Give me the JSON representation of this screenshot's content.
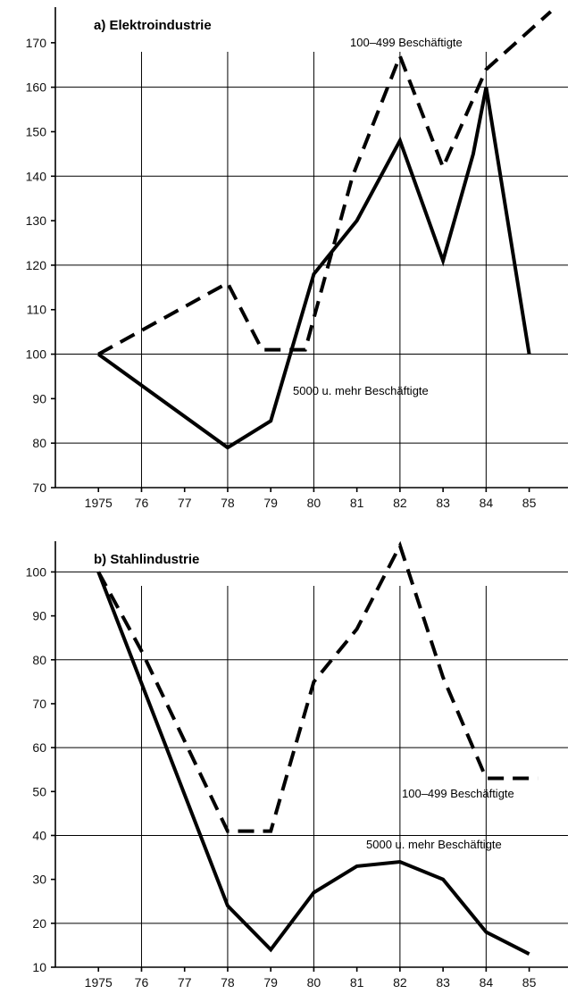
{
  "chart_data": [
    {
      "type": "line",
      "title": "a)  Elektroindustrie",
      "x": [
        1975,
        1976,
        1977,
        1978,
        1979,
        1980,
        1981,
        1982,
        1983,
        1984,
        1985
      ],
      "x_tick_labels": [
        "1975",
        "76",
        "77",
        "78",
        "79",
        "80",
        "81",
        "82",
        "83",
        "84",
        "85"
      ],
      "y_ticks": [
        70,
        80,
        90,
        100,
        110,
        120,
        130,
        140,
        150,
        160,
        170
      ],
      "ylim": [
        70,
        178
      ],
      "xlim": [
        1974.0,
        1985.9
      ],
      "grid_x": [
        1976,
        1978,
        1980,
        1982,
        1984
      ],
      "grid_y": [
        80,
        100,
        120,
        140,
        160
      ],
      "series": [
        {
          "label": "100–499 Beschäftigte",
          "style": "dashed",
          "points": [
            [
              1975,
              100
            ],
            [
              1978,
              116
            ],
            [
              1978.8,
              101
            ],
            [
              1979.8,
              101
            ],
            [
              1980.9,
              140
            ],
            [
              1982,
              167
            ],
            [
              1983,
              142
            ],
            [
              1984,
              164
            ],
            [
              1985.5,
              177
            ]
          ]
        },
        {
          "label": "5000 u. mehr Beschäftigte",
          "style": "solid",
          "points": [
            [
              1975,
              100
            ],
            [
              1978,
              79
            ],
            [
              1979,
              85
            ],
            [
              1980,
              118
            ],
            [
              1981,
              130
            ],
            [
              1982,
              148
            ],
            [
              1983,
              121
            ],
            [
              1983.7,
              145
            ],
            [
              1984,
              160
            ],
            [
              1985,
              100
            ]
          ]
        }
      ]
    },
    {
      "type": "line",
      "title": "b)  Stahlindustrie",
      "x": [
        1975,
        1976,
        1977,
        1978,
        1979,
        1980,
        1981,
        1982,
        1983,
        1984,
        1985
      ],
      "x_tick_labels": [
        "1975",
        "76",
        "77",
        "78",
        "79",
        "80",
        "81",
        "82",
        "83",
        "84",
        "85"
      ],
      "y_ticks": [
        10,
        20,
        30,
        40,
        50,
        60,
        70,
        80,
        90,
        100
      ],
      "ylim": [
        10,
        107
      ],
      "xlim": [
        1974.0,
        1985.9
      ],
      "grid_x": [
        1976,
        1978,
        1980,
        1982,
        1984
      ],
      "grid_y": [
        20,
        40,
        60,
        80,
        100
      ],
      "series": [
        {
          "label": "100–499 Beschäftigte",
          "style": "dashed",
          "points": [
            [
              1975,
              100
            ],
            [
              1976,
              82
            ],
            [
              1978,
              41
            ],
            [
              1979,
              41
            ],
            [
              1980,
              75
            ],
            [
              1981,
              87
            ],
            [
              1982,
              106
            ],
            [
              1983,
              76
            ],
            [
              1984,
              53
            ],
            [
              1985.2,
              53
            ]
          ]
        },
        {
          "label": "5000 u. mehr Beschäftigte",
          "style": "solid",
          "points": [
            [
              1975,
              100
            ],
            [
              1978,
              24
            ],
            [
              1979,
              14
            ],
            [
              1980,
              27
            ],
            [
              1981,
              33
            ],
            [
              1982,
              34
            ],
            [
              1983,
              30
            ],
            [
              1984,
              18
            ],
            [
              1985,
              13
            ]
          ]
        }
      ]
    }
  ]
}
